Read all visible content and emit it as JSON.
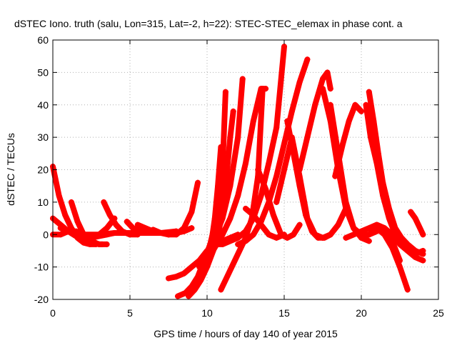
{
  "chart_data": {
    "type": "scatter",
    "title": "dSTEC Iono. truth (salu, Lon=315, Lat=-2, h=22): STEC-STEC_elemax in phase cont. a",
    "xlabel": "GPS time / hours of day 140 of year 2015",
    "ylabel": "dSTEC  / TECUs",
    "xlim": [
      0,
      25
    ],
    "ylim": [
      -20,
      60
    ],
    "xticks": [
      0,
      5,
      10,
      15,
      20,
      25
    ],
    "yticks": [
      -20,
      -10,
      0,
      10,
      20,
      30,
      40,
      50,
      60
    ],
    "xtick_labels": [
      "0",
      "5",
      "10",
      "15",
      "20",
      "25"
    ],
    "ytick_labels": [
      "-20",
      "-10",
      "0",
      "10",
      "20",
      "30",
      "40",
      "50",
      "60"
    ],
    "grid": true,
    "marker": "+",
    "color": "#ff0000",
    "series": [
      {
        "x": [
          0.0,
          0.4,
          0.8,
          1.2,
          1.6,
          2.0,
          2.4,
          2.8
        ],
        "y": [
          21,
          12,
          6,
          2,
          -1,
          -2.5,
          -3,
          -3
        ]
      },
      {
        "x": [
          0.0,
          0.5,
          1.0,
          1.5,
          2.0,
          2.5,
          3.0,
          3.2
        ],
        "y": [
          5,
          3,
          1,
          -0.5,
          -1.5,
          -2.5,
          -3,
          -3
        ]
      },
      {
        "x": [
          0.0,
          0.5,
          1.0,
          1.5,
          2.0,
          2.5,
          3.0,
          3.5,
          4.0
        ],
        "y": [
          0,
          0,
          1,
          0.5,
          -0.5,
          -1,
          -0.5,
          0,
          0.5
        ]
      },
      {
        "x": [
          1.2,
          1.6,
          2.0,
          2.5,
          3.0,
          3.5
        ],
        "y": [
          10,
          4,
          0,
          -2,
          -3,
          -3
        ]
      },
      {
        "x": [
          0.5,
          1.0,
          2.0,
          3.0,
          4.0,
          5.0,
          6.0,
          7.0,
          8.0
        ],
        "y": [
          2,
          1,
          0,
          0,
          0.5,
          0.5,
          0.5,
          0.5,
          1
        ]
      },
      {
        "x": [
          1.5,
          2.0,
          2.5,
          3.0,
          3.5,
          4.0
        ],
        "y": [
          1,
          0,
          -1,
          0,
          2,
          5
        ]
      },
      {
        "x": [
          3.3,
          3.7,
          4.1,
          4.5,
          5.0,
          5.5
        ],
        "y": [
          10,
          6,
          3,
          1,
          0,
          0
        ]
      },
      {
        "x": [
          4.8,
          5.2,
          5.6,
          6.0,
          6.5,
          7.0,
          7.5
        ],
        "y": [
          4,
          2,
          1,
          0.5,
          0.5,
          0.5,
          0.5
        ]
      },
      {
        "x": [
          5.5,
          6.0,
          6.5,
          7.0,
          7.5,
          8.0
        ],
        "y": [
          3,
          2,
          1,
          0.5,
          0.5,
          1
        ]
      },
      {
        "x": [
          6.5,
          7.0,
          7.5,
          8.0,
          8.5,
          9.0
        ],
        "y": [
          1.5,
          0.5,
          0,
          0.5,
          1,
          2
        ]
      },
      {
        "x": [
          7.5,
          8.0,
          8.5,
          9.0,
          9.4
        ],
        "y": [
          0,
          0,
          2,
          7,
          16
        ]
      },
      {
        "x": [
          7.5,
          8.0,
          8.5,
          9.0,
          9.5,
          10.0,
          10.5,
          11.0,
          11.5,
          12.0
        ],
        "y": [
          -13.5,
          -13,
          -12,
          -10,
          -8,
          -5,
          -3,
          -2,
          -1,
          0
        ]
      },
      {
        "x": [
          8.1,
          8.6,
          9.0,
          9.4,
          9.8,
          10.2,
          10.6,
          11.0,
          11.2
        ],
        "y": [
          -19,
          -18,
          -16,
          -13,
          -8,
          -3,
          5,
          20,
          44
        ]
      },
      {
        "x": [
          8.8,
          9.2,
          9.6,
          10.0,
          10.4,
          10.8,
          11.2,
          11.5,
          11.7
        ],
        "y": [
          -19,
          -17,
          -14,
          -10,
          -5,
          2,
          15,
          30,
          38
        ]
      },
      {
        "x": [
          9.8,
          10.2,
          10.5,
          10.7,
          10.9
        ],
        "y": [
          -10,
          -5,
          5,
          15,
          27
        ]
      },
      {
        "x": [
          10.9,
          11.3,
          11.7,
          12.1,
          12.5,
          12.9,
          13.3,
          13.6
        ],
        "y": [
          -17,
          -13,
          -9,
          -5,
          -1,
          5,
          18,
          45
        ]
      },
      {
        "x": [
          9.5,
          10.0,
          10.5,
          11.0,
          11.5,
          12.0,
          12.3
        ],
        "y": [
          -10,
          -6,
          -1,
          5,
          15,
          30,
          48
        ]
      },
      {
        "x": [
          9.5,
          10.0,
          10.5,
          11.0,
          11.5,
          12.0,
          12.5,
          13.0,
          13.5,
          13.8
        ],
        "y": [
          -12,
          -8,
          -4,
          0,
          5,
          12,
          22,
          35,
          45,
          45
        ]
      },
      {
        "x": [
          10.5,
          11.0,
          11.5,
          12.0,
          12.5,
          13.0,
          13.5,
          14.0,
          14.5,
          15.0
        ],
        "y": [
          -3,
          -3,
          -2,
          -1,
          1,
          5,
          12,
          22,
          33,
          58
        ]
      },
      {
        "x": [
          12.0,
          12.5,
          13.0,
          13.5,
          14.0,
          14.5,
          15.0,
          15.5,
          16.0,
          16.5
        ],
        "y": [
          -3,
          -2,
          0,
          4,
          10,
          18,
          28,
          38,
          47,
          54
        ]
      },
      {
        "x": [
          12.5,
          13.0,
          13.5,
          14.0,
          14.5,
          15.0
        ],
        "y": [
          8,
          6,
          3,
          0,
          -1,
          0
        ]
      },
      {
        "x": [
          13.3,
          13.8,
          14.3,
          14.8,
          15.2,
          15.6,
          16.0
        ],
        "y": [
          20,
          14,
          6,
          0,
          -1,
          0,
          3
        ]
      },
      {
        "x": [
          14.5,
          15.0,
          15.5,
          16.0,
          16.5,
          17.0,
          17.5,
          18.0
        ],
        "y": [
          10,
          20,
          30,
          18,
          5,
          0,
          -1,
          0
        ]
      },
      {
        "x": [
          15.2,
          15.6,
          16.0,
          16.4,
          16.8,
          17.2,
          17.6,
          18.0,
          18.5,
          19.0
        ],
        "y": [
          35,
          25,
          15,
          6,
          1,
          -1,
          -1,
          0,
          3,
          8
        ]
      },
      {
        "x": [
          16.0,
          16.5,
          17.0,
          17.5,
          17.8,
          18.0
        ],
        "y": [
          20,
          30,
          40,
          48,
          50,
          45
        ]
      },
      {
        "x": [
          17.5,
          18.0,
          18.5,
          19.0,
          19.5,
          20.0,
          20.5
        ],
        "y": [
          45,
          35,
          20,
          8,
          2,
          -1,
          -2
        ]
      },
      {
        "x": [
          18.0,
          18.5,
          19.0,
          19.5,
          20.0,
          20.5,
          21.0
        ],
        "y": [
          40,
          25,
          10,
          2,
          0,
          0,
          1
        ]
      },
      {
        "x": [
          18.3,
          18.8,
          19.2,
          19.6,
          20.0
        ],
        "y": [
          18,
          28,
          35,
          40,
          38
        ]
      },
      {
        "x": [
          19.0,
          19.5,
          20.0,
          20.5,
          21.0,
          21.5,
          22.0,
          22.5,
          23.0,
          23.5,
          24.0
        ],
        "y": [
          -1,
          0,
          1,
          2,
          3,
          2,
          0,
          -3,
          -5,
          -6,
          -5
        ]
      },
      {
        "x": [
          20.3,
          20.6,
          21.0,
          21.4,
          21.8,
          22.2,
          22.6,
          23.0,
          23.5,
          24.0
        ],
        "y": [
          40,
          30,
          22,
          12,
          5,
          0,
          -3,
          -5,
          -7,
          -8
        ]
      },
      {
        "x": [
          20.5,
          20.8,
          21.1,
          21.4,
          21.8,
          22.2,
          22.6,
          23.0,
          23.5,
          24.0
        ],
        "y": [
          44,
          35,
          25,
          16,
          8,
          2,
          -1,
          -3,
          -5,
          -6
        ]
      },
      {
        "x": [
          20.0,
          20.5,
          21.0,
          21.5,
          22.0,
          22.5,
          23.0
        ],
        "y": [
          -1,
          0,
          2,
          0,
          -4,
          -10,
          -17
        ]
      },
      {
        "x": [
          21.0,
          21.5,
          22.0,
          22.5
        ],
        "y": [
          3,
          2,
          -2,
          -8
        ]
      },
      {
        "x": [
          23.2,
          23.5,
          23.8,
          24.0
        ],
        "y": [
          7,
          5,
          2,
          0
        ]
      }
    ]
  }
}
